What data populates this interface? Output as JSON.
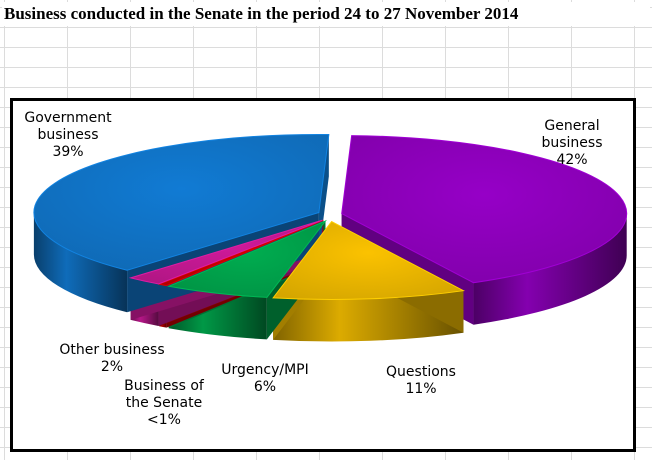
{
  "title": "Business conducted in the Senate in the period 24 to 27 November 2014",
  "chart_data": {
    "type": "pie",
    "title": "Business conducted in the Senate in the period 24 to 27 November 2014",
    "style": "3d-exploded",
    "slices": [
      {
        "name_lines": [
          "General",
          "business"
        ],
        "value_text": "42%",
        "value": 42,
        "color": "#8B00B8"
      },
      {
        "name_lines": [
          "Questions"
        ],
        "value_text": "11%",
        "value": 11,
        "color": "#E8B400"
      },
      {
        "name_lines": [
          "Urgency/MPI"
        ],
        "value_text": "6%",
        "value": 6,
        "color": "#00A04A"
      },
      {
        "name_lines": [
          "Business of",
          "the Senate"
        ],
        "value_text": "<1%",
        "value": 0.5,
        "color": "#C00000"
      },
      {
        "name_lines": [
          "Other business"
        ],
        "value_text": "2%",
        "value": 2,
        "color": "#C0188F"
      },
      {
        "name_lines": [
          "Government",
          "business"
        ],
        "value_text": "39%",
        "value": 39,
        "color": "#1072C4"
      }
    ]
  }
}
